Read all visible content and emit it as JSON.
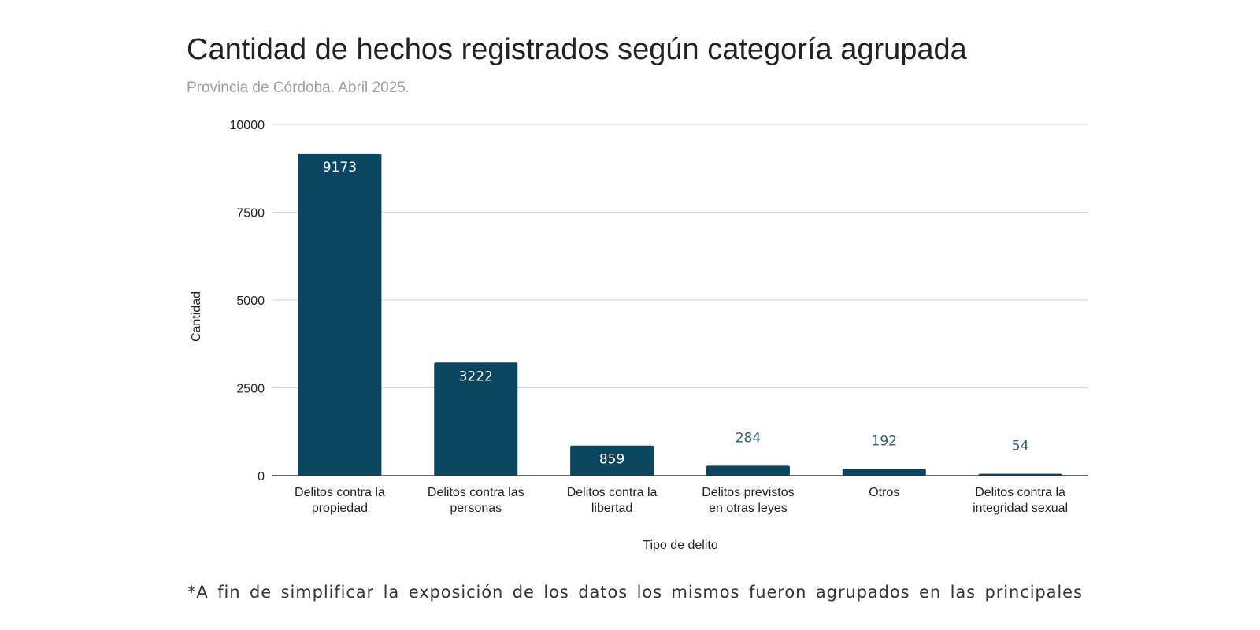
{
  "chart_data": {
    "type": "bar",
    "title": "Cantidad de hechos registrados según categoría agrupada",
    "subtitle": "Provincia de Córdoba. Abril 2025.",
    "xlabel": "Tipo de delito",
    "ylabel": "Cantidad",
    "ylim": [
      0,
      10000
    ],
    "yticks": [
      "0",
      "2500",
      "5000",
      "7500",
      "10000"
    ],
    "grid": true,
    "legend": "none",
    "bar_color": "#0b4560",
    "categories": [
      [
        "Delitos contra la",
        "propiedad"
      ],
      [
        "Delitos contra las",
        "personas"
      ],
      [
        "Delitos contra la",
        "libertad"
      ],
      [
        "Delitos previstos",
        "en otras leyes"
      ],
      [
        "Otros"
      ],
      [
        "Delitos contra la",
        "integridad sexual"
      ]
    ],
    "values": [
      9173,
      3222,
      859,
      284,
      192,
      54
    ]
  },
  "footnote": "*A fin de simplificar la exposición de los datos los mismos fueron agrupados en las principales"
}
